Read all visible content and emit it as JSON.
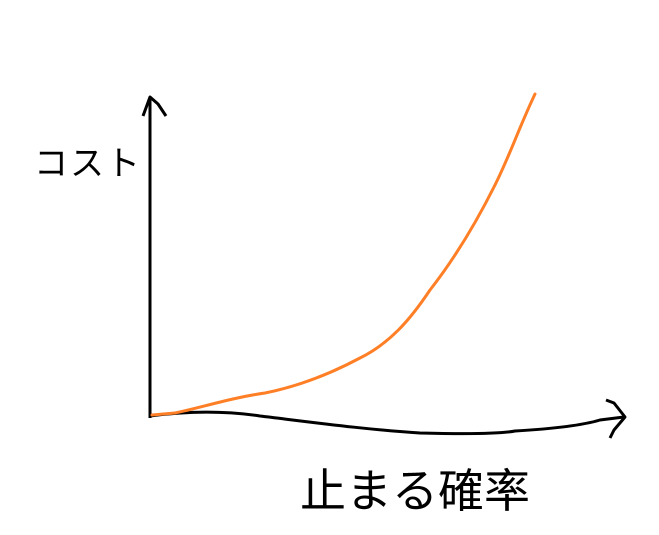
{
  "diagram": {
    "y_axis_label": "コスト",
    "x_axis_label": "止まる確率",
    "colors": {
      "axes": "#000000",
      "curve": "#ff7f27",
      "background": "#ffffff"
    }
  }
}
